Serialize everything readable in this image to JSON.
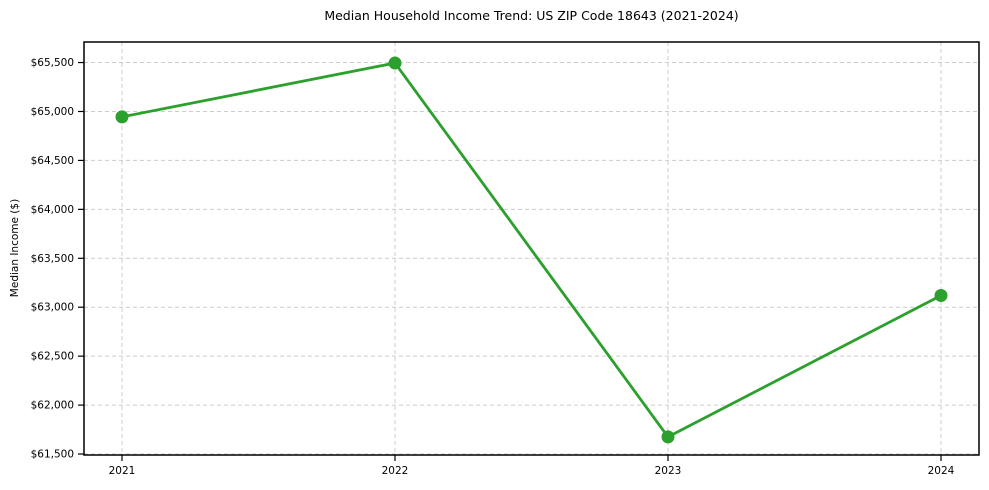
{
  "chart_data": {
    "type": "line",
    "title": "Median Household Income Trend: US ZIP Code 18643 (2021-2024)",
    "xlabel": "",
    "ylabel": "Median Income ($)",
    "x": [
      "2021",
      "2022",
      "2023",
      "2024"
    ],
    "values": [
      64945,
      65495,
      61675,
      63120
    ],
    "series_name": "Median Household Income",
    "xtick_labels": [
      "2021",
      "2022",
      "2023",
      "2024"
    ],
    "yticks": [
      61500,
      62000,
      62500,
      63000,
      63500,
      64000,
      64500,
      65000,
      65500
    ],
    "ytick_labels": [
      "$61,500",
      "$62,000",
      "$62,500",
      "$63,000",
      "$63,500",
      "$64,000",
      "$64,500",
      "$65,000",
      "$65,500"
    ],
    "ylim": [
      61490,
      65710
    ],
    "grid": true,
    "grid_style": "dashed",
    "legend": false,
    "line_color": "#2ca02c",
    "marker": "circle",
    "marker_size": 6.5,
    "grid_color": "#cccccc",
    "spine_color": "#000000",
    "background": "#ffffff"
  }
}
